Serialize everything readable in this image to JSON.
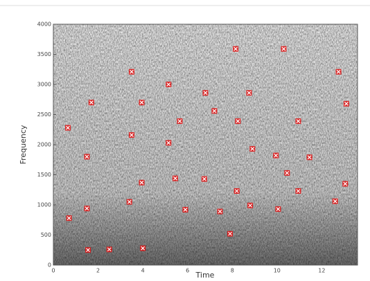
{
  "chart_data": {
    "type": "scatter",
    "x_label": "Time",
    "y_label": "Frequency",
    "marker_color": "#e01010",
    "x": [
      0.65,
      0.7,
      1.5,
      1.5,
      1.7,
      1.55,
      2.5,
      3.5,
      3.5,
      3.4,
      3.95,
      3.95,
      4.0,
      5.15,
      5.15,
      5.65,
      5.45,
      5.9,
      6.75,
      6.8,
      7.2,
      7.45,
      7.9,
      8.15,
      8.25,
      8.2,
      8.75,
      8.9,
      8.8,
      9.95,
      10.05,
      10.3,
      10.45,
      10.95,
      10.95,
      11.45,
      12.6,
      12.75,
      13.1,
      13.05
    ],
    "values": [
      2280,
      780,
      1800,
      940,
      2700,
      250,
      260,
      3210,
      2160,
      1050,
      2700,
      1370,
      280,
      3000,
      2030,
      2390,
      1440,
      920,
      1430,
      2860,
      2560,
      890,
      520,
      3590,
      2390,
      1230,
      2860,
      1930,
      990,
      1820,
      930,
      3590,
      1530,
      2390,
      1230,
      1790,
      1060,
      3210,
      2680,
      1350
    ],
    "xlim": [
      0,
      13.6
    ],
    "ylim": [
      0,
      4000
    ],
    "xticks": [
      0,
      2,
      4,
      6,
      8,
      10,
      12
    ],
    "yticks": [
      0,
      500,
      1000,
      1500,
      2000,
      2500,
      3000,
      3500,
      4000
    ]
  }
}
